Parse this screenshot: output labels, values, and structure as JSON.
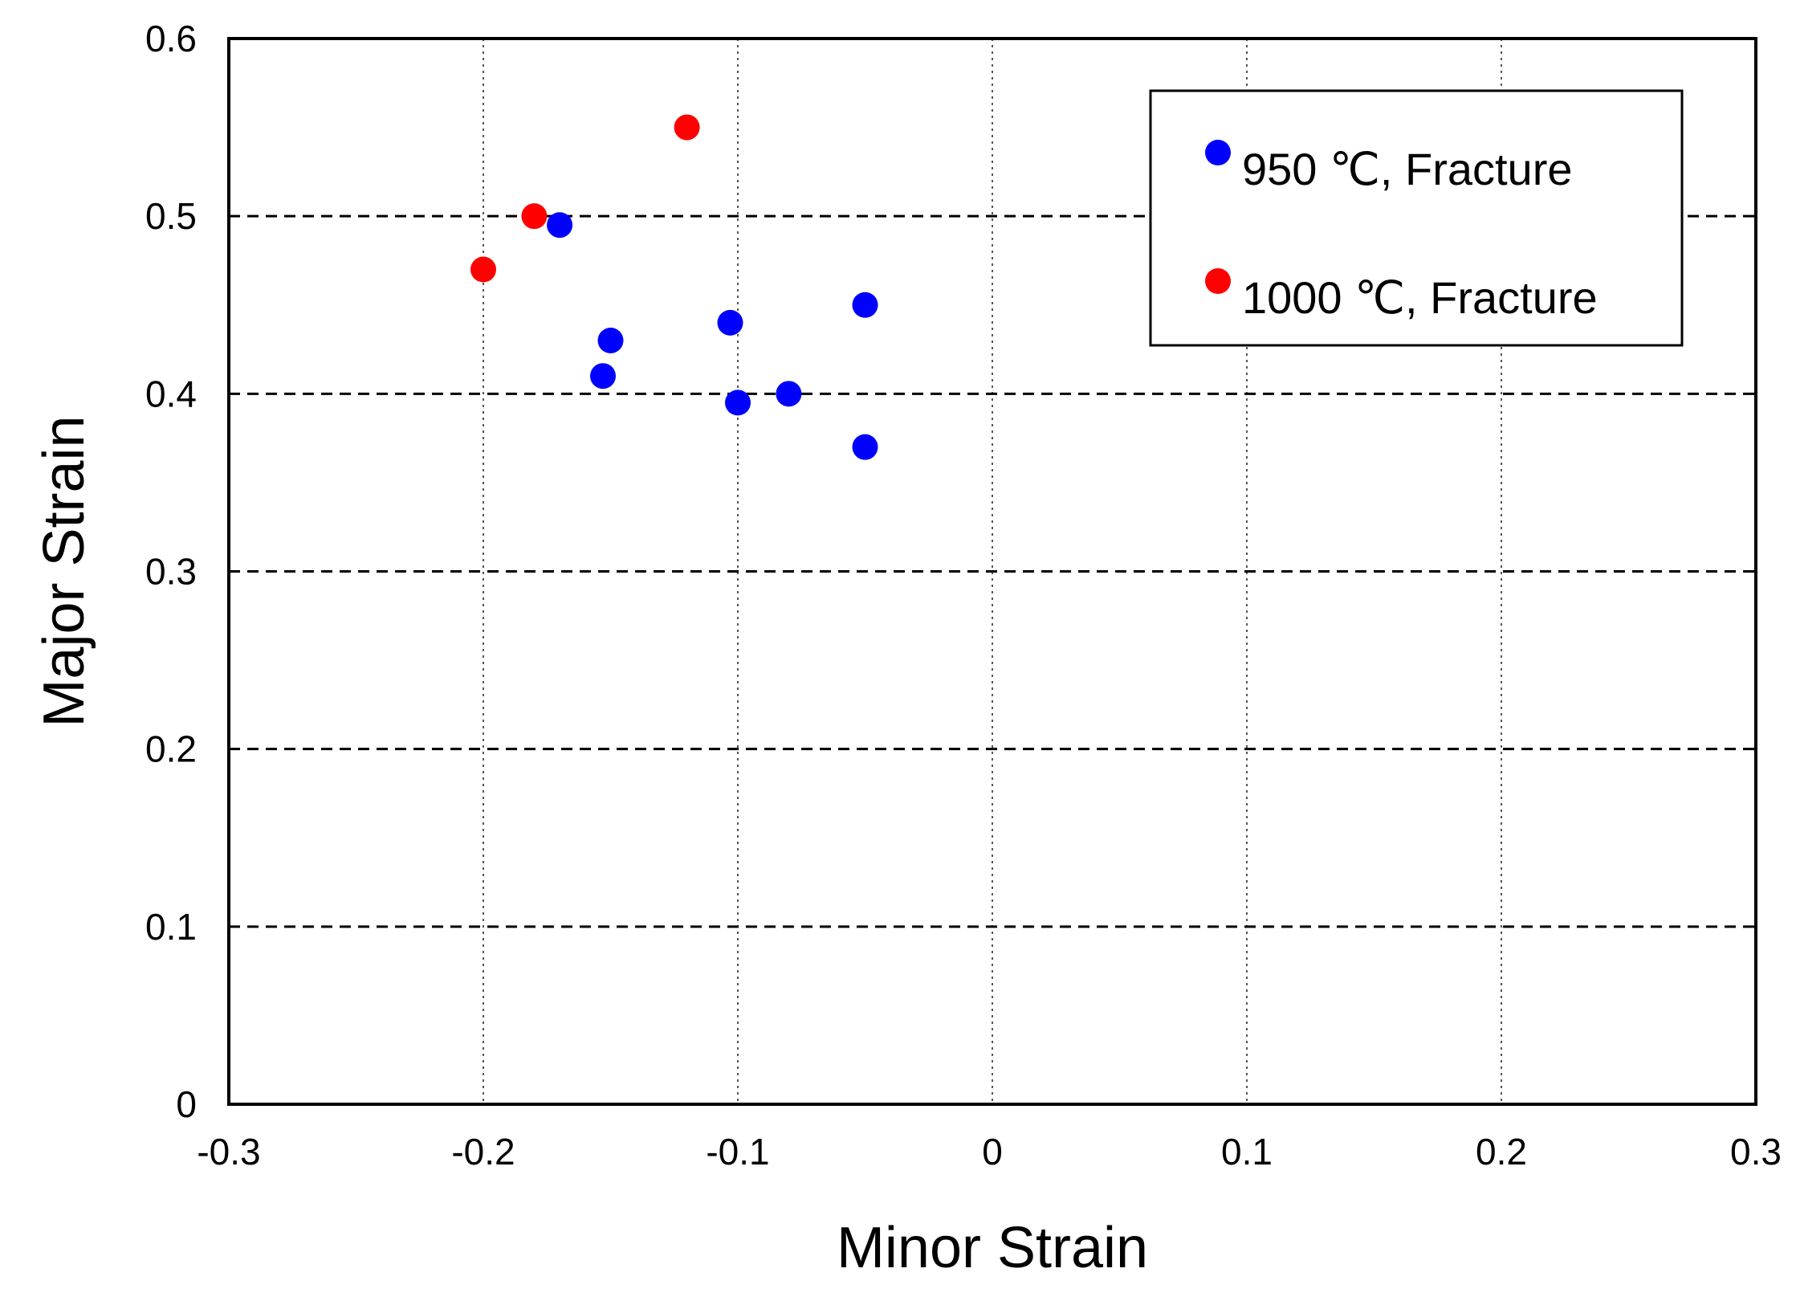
{
  "chart_data": {
    "type": "scatter",
    "xlabel": "Minor Strain",
    "ylabel": "Major Strain",
    "xlim": [
      -0.3,
      0.3
    ],
    "ylim": [
      0,
      0.6
    ],
    "xticks": [
      -0.3,
      -0.2,
      -0.1,
      0,
      0.1,
      0.2,
      0.3
    ],
    "yticks": [
      0,
      0.1,
      0.2,
      0.3,
      0.4,
      0.5,
      0.6
    ],
    "xtick_labels": [
      "-0.3",
      "-0.2",
      "-0.1",
      "0",
      "0.1",
      "0.2",
      "0.3"
    ],
    "ytick_labels": [
      "0",
      "0.1",
      "0.2",
      "0.3",
      "0.4",
      "0.5",
      "0.6"
    ],
    "grid": true,
    "legend_position": "top-right",
    "series": [
      {
        "name": "950 ℃, Fracture",
        "color": "#0000ff",
        "points": [
          {
            "x": -0.17,
            "y": 0.495
          },
          {
            "x": -0.15,
            "y": 0.43
          },
          {
            "x": -0.153,
            "y": 0.41
          },
          {
            "x": -0.103,
            "y": 0.44
          },
          {
            "x": -0.1,
            "y": 0.395
          },
          {
            "x": -0.08,
            "y": 0.4
          },
          {
            "x": -0.05,
            "y": 0.45
          },
          {
            "x": -0.05,
            "y": 0.37
          }
        ]
      },
      {
        "name": "1000 ℃, Fracture",
        "color": "#ff0000",
        "points": [
          {
            "x": -0.2,
            "y": 0.47
          },
          {
            "x": -0.18,
            "y": 0.5
          },
          {
            "x": -0.12,
            "y": 0.55
          }
        ]
      }
    ]
  }
}
